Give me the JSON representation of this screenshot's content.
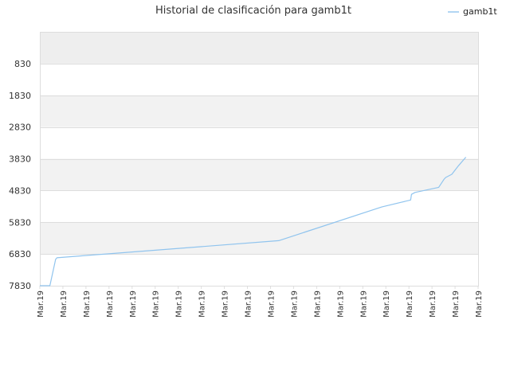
{
  "chart_data": {
    "type": "line",
    "title": "Historial de clasificación para gamb1t",
    "legend": {
      "position": "top-right",
      "entries": [
        "gamb1t"
      ]
    },
    "grid": true,
    "y_inverted": true,
    "ylim": [
      7830,
      -170
    ],
    "y_ticks": [
      830,
      1830,
      2830,
      3830,
      4830,
      5830,
      6830,
      7830
    ],
    "x_tick_labels": [
      "Mar.19",
      "Mar.19",
      "Mar.19",
      "Mar.19",
      "Mar.19",
      "Mar.19",
      "Mar.19",
      "Mar.19",
      "Mar.19",
      "Mar.19",
      "Mar.19",
      "Mar.19",
      "Mar.19",
      "Mar.19",
      "Mar.19",
      "Mar.19",
      "Mar.19",
      "Mar.19",
      "Mar.19",
      "Mar.19"
    ],
    "colors": {
      "line": "#90c4ee",
      "band": "#f2f2f2",
      "top_band": "#eeeeee",
      "grid": "#dddddd"
    },
    "series": [
      {
        "name": "gamb1t",
        "x": [
          0,
          0.023,
          0.036,
          0.039,
          0.545,
          0.78,
          0.846,
          0.848,
          0.856,
          0.91,
          0.922,
          0.926,
          0.94,
          0.955,
          0.972
        ],
        "values": [
          7830,
          7830,
          7000,
          6950,
          6410,
          5350,
          5130,
          4950,
          4890,
          4730,
          4480,
          4420,
          4320,
          4050,
          3780
        ]
      }
    ]
  }
}
